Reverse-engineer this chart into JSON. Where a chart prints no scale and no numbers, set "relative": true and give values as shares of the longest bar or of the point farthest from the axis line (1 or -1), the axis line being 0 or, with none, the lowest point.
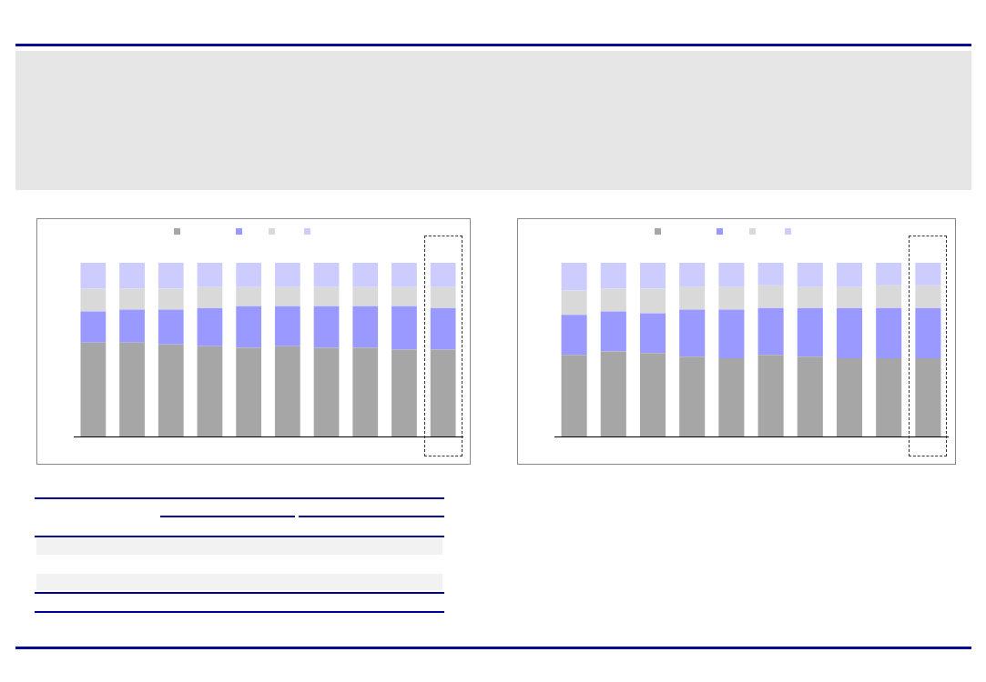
{
  "chart_data": [
    {
      "type": "bar",
      "stacked": true,
      "relative": true,
      "categories": [
        null,
        null,
        null,
        null,
        null,
        null,
        null,
        null,
        null,
        null
      ],
      "series": [
        {
          "color": "#a6a6a6",
          "values": [
            0.54,
            0.54,
            0.53,
            0.52,
            0.51,
            0.52,
            0.51,
            0.51,
            0.5,
            0.5
          ]
        },
        {
          "color": "#9999ff",
          "values": [
            0.18,
            0.19,
            0.2,
            0.22,
            0.24,
            0.23,
            0.24,
            0.24,
            0.25,
            0.24
          ]
        },
        {
          "color": "#d9d9d9",
          "values": [
            0.13,
            0.12,
            0.12,
            0.12,
            0.11,
            0.11,
            0.11,
            0.11,
            0.11,
            0.12
          ]
        },
        {
          "color": "#ccccff",
          "values": [
            0.15,
            0.15,
            0.15,
            0.14,
            0.14,
            0.14,
            0.14,
            0.14,
            0.14,
            0.14
          ]
        }
      ]
    },
    {
      "type": "bar",
      "stacked": true,
      "relative": true,
      "categories": [
        null,
        null,
        null,
        null,
        null,
        null,
        null,
        null,
        null,
        null
      ],
      "series": [
        {
          "color": "#a6a6a6",
          "values": [
            0.47,
            0.49,
            0.48,
            0.46,
            0.45,
            0.47,
            0.46,
            0.45,
            0.45,
            0.45
          ]
        },
        {
          "color": "#9999ff",
          "values": [
            0.23,
            0.23,
            0.23,
            0.27,
            0.28,
            0.27,
            0.28,
            0.29,
            0.29,
            0.29
          ]
        },
        {
          "color": "#d9d9d9",
          "values": [
            0.14,
            0.13,
            0.14,
            0.13,
            0.13,
            0.13,
            0.12,
            0.12,
            0.13,
            0.13
          ]
        },
        {
          "color": "#ccccff",
          "values": [
            0.16,
            0.15,
            0.15,
            0.14,
            0.14,
            0.13,
            0.14,
            0.14,
            0.13,
            0.13
          ]
        }
      ]
    }
  ]
}
